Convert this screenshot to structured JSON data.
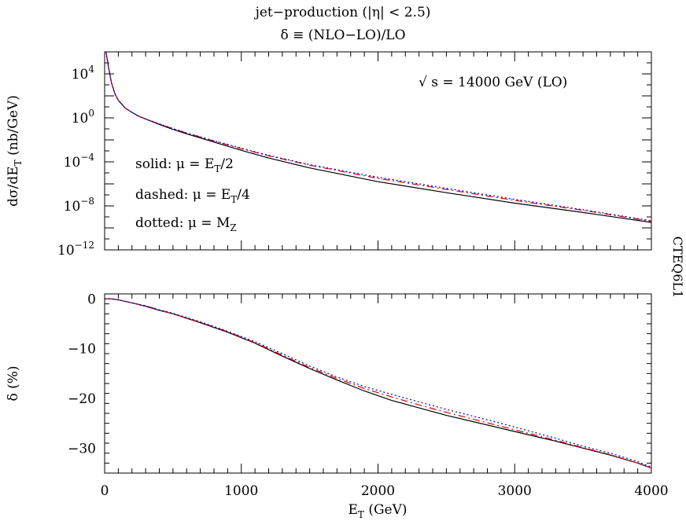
{
  "figure": {
    "title_line1": "jet−production (|η| < 2.5)",
    "title_line2": "δ ≡ (NLO−LO)/LO",
    "side_label": "CTEQ6L1",
    "colors": {
      "solid": "#000000",
      "dashed": "#e00000",
      "dotted": "#0000e0"
    }
  },
  "chart_data": [
    {
      "type": "line",
      "panel": "top",
      "xlabel": "E_T (GeV)",
      "ylabel": "dσ/dE_T (nb/GeV)",
      "ylabel_main": "dσ/dE",
      "ylabel_sub": "T",
      "ylabel_tail": " (nb/GeV)",
      "xlim": [
        0,
        4000
      ],
      "ylim_log10": [
        -12,
        6
      ],
      "log_y": true,
      "y_ticks": [
        {
          "exp": 4,
          "label": "10",
          "sup": "4"
        },
        {
          "exp": 0,
          "label": "10",
          "sup": "0"
        },
        {
          "exp": -4,
          "label": "10",
          "sup": "−4"
        },
        {
          "exp": -8,
          "label": "10",
          "sup": "−8"
        },
        {
          "exp": -12,
          "label": "10",
          "sup": "−12"
        }
      ],
      "annotation": "√ s = 14000 GeV (LO)",
      "legend": [
        {
          "series": "solid",
          "prefix": "solid: μ = E",
          "sub": "T",
          "suffix": "/2"
        },
        {
          "series": "dashed",
          "prefix": "dashed: μ = E",
          "sub": "T",
          "suffix": "/4"
        },
        {
          "series": "dotted",
          "prefix": "dotted: μ = M",
          "sub": "Z",
          "suffix": ""
        }
      ],
      "x": [
        10,
        30,
        50,
        75,
        100,
        150,
        200,
        250,
        300,
        400,
        500,
        600,
        800,
        1000,
        1200,
        1500,
        2000,
        2500,
        3000,
        3500,
        4000
      ],
      "series": [
        {
          "key": "solid",
          "log10_values": [
            6,
            4.5,
            3.2,
            2.2,
            1.6,
            0.9,
            0.5,
            0.15,
            -0.1,
            -0.6,
            -1.05,
            -1.45,
            -2.2,
            -2.95,
            -3.65,
            -4.55,
            -5.8,
            -6.8,
            -7.75,
            -8.6,
            -9.5
          ]
        },
        {
          "key": "dashed",
          "log10_values": [
            6,
            4.5,
            3.2,
            2.2,
            1.6,
            0.9,
            0.5,
            0.15,
            -0.1,
            -0.55,
            -0.98,
            -1.38,
            -2.1,
            -2.8,
            -3.45,
            -4.3,
            -5.5,
            -6.5,
            -7.5,
            -8.4,
            -9.4
          ]
        },
        {
          "key": "dotted",
          "log10_values": [
            6,
            4.5,
            3.2,
            2.2,
            1.6,
            0.9,
            0.5,
            0.15,
            -0.1,
            -0.55,
            -0.97,
            -1.37,
            -2.08,
            -2.75,
            -3.4,
            -4.25,
            -5.4,
            -6.4,
            -7.4,
            -8.35,
            -9.35
          ]
        }
      ]
    },
    {
      "type": "line",
      "panel": "bottom",
      "xlabel_main": "E",
      "xlabel_sub": "T",
      "xlabel_tail": " (GeV)",
      "ylabel": "δ (%)",
      "xlim": [
        0,
        4000
      ],
      "ylim": [
        -35,
        1
      ],
      "x_ticks": [
        0,
        1000,
        2000,
        3000,
        4000
      ],
      "y_ticks": [
        0,
        -10,
        -20,
        -30
      ],
      "x_tick_labels": [
        "0",
        "1000",
        "2000",
        "3000",
        "4000"
      ],
      "y_tick_labels": [
        "0",
        "−10",
        "−20",
        "−30"
      ],
      "x": [
        0,
        50,
        100,
        200,
        300,
        400,
        500,
        700,
        900,
        1100,
        1300,
        1500,
        1700,
        1900,
        2100,
        2300,
        2500,
        2700,
        2900,
        3100,
        3300,
        3500,
        3700,
        3900,
        4000
      ],
      "series": [
        {
          "key": "solid",
          "values": [
            0,
            0,
            -0.2,
            -0.8,
            -1.5,
            -2.3,
            -3.0,
            -4.8,
            -6.7,
            -8.9,
            -11.5,
            -14.0,
            -16.3,
            -18.5,
            -20.4,
            -21.9,
            -23.4,
            -24.7,
            -26.0,
            -27.3,
            -28.6,
            -30.0,
            -31.4,
            -33.0,
            -34.0
          ]
        },
        {
          "key": "dashed",
          "values": [
            0,
            0,
            -0.2,
            -0.8,
            -1.4,
            -2.2,
            -3.0,
            -4.7,
            -6.6,
            -8.8,
            -11.3,
            -13.8,
            -16.0,
            -18.0,
            -19.7,
            -21.3,
            -22.8,
            -24.2,
            -25.6,
            -27.0,
            -28.4,
            -29.9,
            -31.3,
            -33.0,
            -34.0
          ]
        },
        {
          "key": "dotted",
          "values": [
            0,
            0,
            -0.2,
            -0.8,
            -1.4,
            -2.2,
            -2.9,
            -4.6,
            -6.5,
            -8.6,
            -11.0,
            -13.5,
            -15.7,
            -17.6,
            -19.2,
            -20.7,
            -22.2,
            -23.6,
            -25.0,
            -26.5,
            -28.0,
            -29.6,
            -31.0,
            -32.7,
            -33.8
          ]
        }
      ]
    }
  ]
}
